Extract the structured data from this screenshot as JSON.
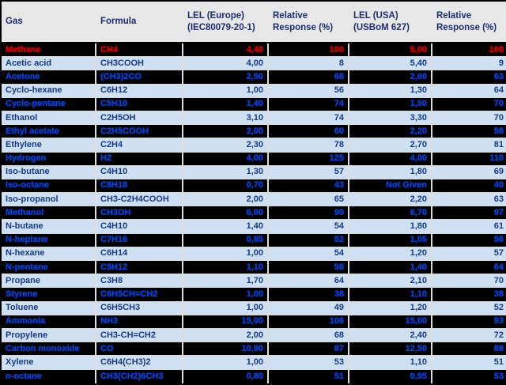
{
  "colors": {
    "header_bg": "#e7e7e7",
    "header_text": "#1c2e6e",
    "dark_row_bg": "#000000",
    "dark_row_text": "#0d3fd6",
    "light_row_bg": "#cfe0f3",
    "light_row_text": "#183a85",
    "highlight_text": "#e00000"
  },
  "table": {
    "headers": [
      {
        "line1": "Gas",
        "line2": ""
      },
      {
        "line1": "Formula",
        "line2": ""
      },
      {
        "line1": "LEL (Europe)",
        "line2": "(IEC80079-20-1)"
      },
      {
        "line1": "Relative",
        "line2": "Response (%)"
      },
      {
        "line1": "LEL (USA)",
        "line2": "(USBoM 627)"
      },
      {
        "line1": "Relative",
        "line2": "Response (%)"
      }
    ],
    "rows": [
      {
        "gas": "Methane",
        "formula": "CH4",
        "lel_eu": "4,40",
        "rr_eu": "100",
        "lel_usa": "5,00",
        "rr_usa": "100",
        "highlight": true
      },
      {
        "gas": "Acetic acid",
        "formula": "CH3COOH",
        "lel_eu": "4,00",
        "rr_eu": "8",
        "lel_usa": "5,40",
        "rr_usa": "9",
        "highlight": false
      },
      {
        "gas": "Acetone",
        "formula": "(CH3)2CO",
        "lel_eu": "2,50",
        "rr_eu": "68",
        "lel_usa": "2,60",
        "rr_usa": "63",
        "highlight": false
      },
      {
        "gas": "Cyclo-hexane",
        "formula": "C6H12",
        "lel_eu": "1,00",
        "rr_eu": "56",
        "lel_usa": "1,30",
        "rr_usa": "64",
        "highlight": false
      },
      {
        "gas": "Cyclo-pentane",
        "formula": "C5H10",
        "lel_eu": "1,40",
        "rr_eu": "74",
        "lel_usa": "1,50",
        "rr_usa": "70",
        "highlight": false
      },
      {
        "gas": "Ethanol",
        "formula": "C2H5OH",
        "lel_eu": "3,10",
        "rr_eu": "74",
        "lel_usa": "3,30",
        "rr_usa": "70",
        "highlight": false
      },
      {
        "gas": "Ethyl acetate",
        "formula": "C2H5COOH",
        "lel_eu": "2,00",
        "rr_eu": "60",
        "lel_usa": "2,20",
        "rr_usa": "58",
        "highlight": false
      },
      {
        "gas": "Ethylene",
        "formula": "C2H4",
        "lel_eu": "2,30",
        "rr_eu": "78",
        "lel_usa": "2,70",
        "rr_usa": "81",
        "highlight": false
      },
      {
        "gas": "Hydrogen",
        "formula": "H2",
        "lel_eu": "4,00",
        "rr_eu": "125",
        "lel_usa": "4,00",
        "rr_usa": "110",
        "highlight": false
      },
      {
        "gas": "Iso-butane",
        "formula": "C4H10",
        "lel_eu": "1,30",
        "rr_eu": "57",
        "lel_usa": "1,80",
        "rr_usa": "69",
        "highlight": false
      },
      {
        "gas": "Iso-octane",
        "formula": "C8H18",
        "lel_eu": "0,70",
        "rr_eu": "43",
        "lel_usa": "Not Given",
        "rr_usa": "40",
        "highlight": false
      },
      {
        "gas": "Iso-propanol",
        "formula": "CH3-C2H4COOH",
        "lel_eu": "2,00",
        "rr_eu": "65",
        "lel_usa": "2,20",
        "rr_usa": "63",
        "highlight": false
      },
      {
        "gas": "Methanol",
        "formula": "CH3OH",
        "lel_eu": "6,00",
        "rr_eu": "99",
        "lel_usa": "6,70",
        "rr_usa": "97",
        "highlight": false
      },
      {
        "gas": "N-butane",
        "formula": "C4H10",
        "lel_eu": "1,40",
        "rr_eu": "54",
        "lel_usa": "1,80",
        "rr_usa": "61",
        "highlight": false
      },
      {
        "gas": "N-heptane",
        "formula": "C7H16",
        "lel_eu": "0,85",
        "rr_eu": "52",
        "lel_usa": "1,05",
        "rr_usa": "56",
        "highlight": false
      },
      {
        "gas": "N-hexane",
        "formula": "C6H14",
        "lel_eu": "1,00",
        "rr_eu": "54",
        "lel_usa": "1,20",
        "rr_usa": "57",
        "highlight": false
      },
      {
        "gas": "N-pentane",
        "formula": "C5H12",
        "lel_eu": "1,10",
        "rr_eu": "58",
        "lel_usa": "1,40",
        "rr_usa": "64",
        "highlight": false
      },
      {
        "gas": "Propane",
        "formula": "C3H8",
        "lel_eu": "1,70",
        "rr_eu": "64",
        "lel_usa": "2,10",
        "rr_usa": "70",
        "highlight": false
      },
      {
        "gas": "Styrene",
        "formula": "C6H5CH=CH2",
        "lel_eu": "1,00",
        "rr_eu": "38",
        "lel_usa": "1,10",
        "rr_usa": "38",
        "highlight": false
      },
      {
        "gas": "Toluene",
        "formula": "C6H5CH3",
        "lel_eu": "1,00",
        "rr_eu": "49",
        "lel_usa": "1,20",
        "rr_usa": "52",
        "highlight": false
      },
      {
        "gas": "Ammonia",
        "formula": "NH3",
        "lel_eu": "15,00",
        "rr_eu": "106",
        "lel_usa": "15,00",
        "rr_usa": "93",
        "highlight": false
      },
      {
        "gas": "Propylene",
        "formula": "CH3-CH=CH2",
        "lel_eu": "2,00",
        "rr_eu": "68",
        "lel_usa": "2,40",
        "rr_usa": "72",
        "highlight": false
      },
      {
        "gas": "Carbon monoxide",
        "formula": "CO",
        "lel_eu": "10,90",
        "rr_eu": "87",
        "lel_usa": "12,50",
        "rr_usa": "88",
        "highlight": false
      },
      {
        "gas": "Xylene",
        "formula": "C6H4(CH3)2",
        "lel_eu": "1,00",
        "rr_eu": "53",
        "lel_usa": "1,10",
        "rr_usa": "51",
        "highlight": false
      },
      {
        "gas": "n-octane",
        "formula": "CH3(CH2)6CH3",
        "lel_eu": "0,80",
        "rr_eu": "51",
        "lel_usa": "0,95",
        "rr_usa": "53",
        "highlight": false
      }
    ]
  }
}
